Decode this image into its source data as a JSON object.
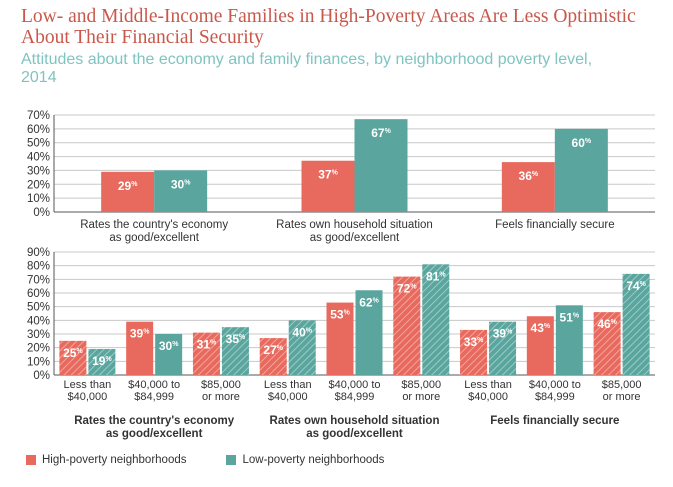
{
  "title": "Low- and Middle-Income Families in High-Poverty Areas Are Less Optimistic About Their Financial Security",
  "subtitle": "Attitudes about the economy and family finances, by neighborhood poverty level, 2014",
  "colors": {
    "high": "#e8695d",
    "low": "#5aa59e",
    "text": "#333333",
    "grid": "#c8c8c8",
    "axis": "#555555"
  },
  "legend": [
    {
      "label": "High-poverty  neighborhoods",
      "color": "#e8695d"
    },
    {
      "label": "Low-poverty  neighborhoods",
      "color": "#5aa59e"
    }
  ],
  "chart_data": [
    {
      "type": "bar",
      "categories": [
        "Rates the country's economy\nas good/excellent",
        "Rates own household situation\nas good/excellent",
        "Feels financially secure"
      ],
      "series": [
        {
          "name": "High-poverty  neighborhoods",
          "values": [
            29,
            37,
            36
          ]
        },
        {
          "name": "Low-poverty  neighborhoods",
          "values": [
            30,
            67,
            60
          ]
        }
      ],
      "yticks": [
        "70%",
        "60%",
        "50%",
        "40%",
        "30%",
        "20%",
        "10%",
        "0%"
      ],
      "ylim": [
        0,
        70
      ],
      "grid": true
    },
    {
      "type": "bar",
      "groups": [
        "Rates the country's economy\nas good/excellent",
        "Rates own household situation\nas good/excellent",
        "Feels financially secure"
      ],
      "subcategories": [
        "Less than\n$40,000",
        "$40,000 to\n$84,999",
        "$85,000\nor more"
      ],
      "series": [
        {
          "name": "High-poverty  neighborhoods",
          "values": [
            [
              25,
              39,
              31
            ],
            [
              27,
              53,
              72
            ],
            [
              33,
              43,
              46
            ]
          ]
        },
        {
          "name": "Low-poverty  neighborhoods",
          "values": [
            [
              19,
              30,
              35
            ],
            [
              40,
              62,
              81
            ],
            [
              39,
              51,
              74
            ]
          ]
        }
      ],
      "hatched_subcategories": [
        0,
        2
      ],
      "yticks": [
        "90%",
        "80%",
        "70%",
        "60%",
        "50%",
        "40%",
        "30%",
        "20%",
        "10%",
        "0%"
      ],
      "ylim": [
        0,
        90
      ],
      "grid": true
    }
  ]
}
